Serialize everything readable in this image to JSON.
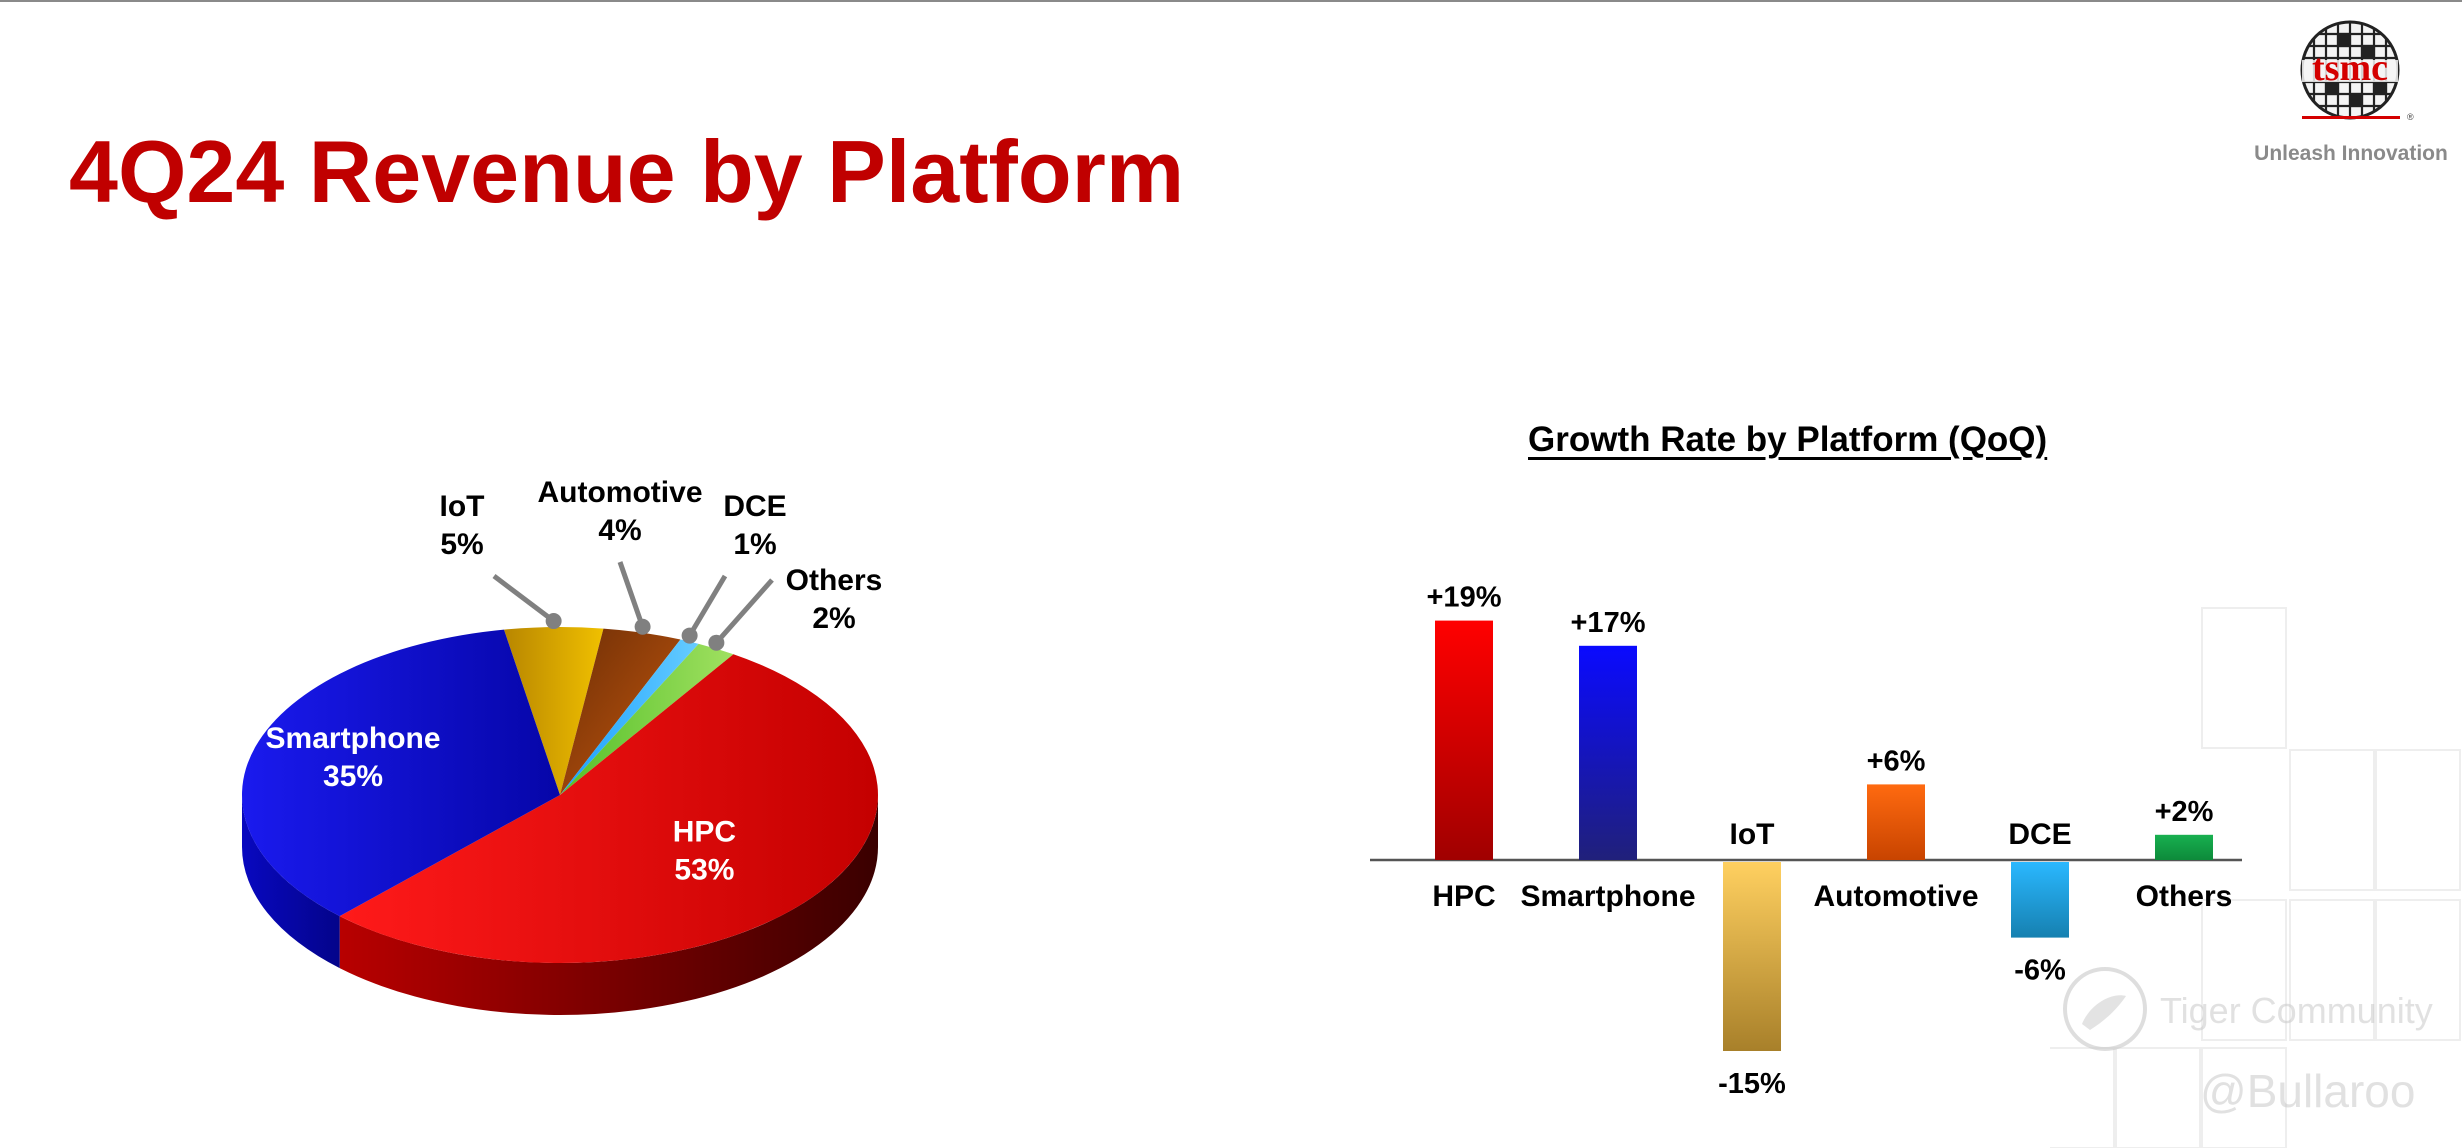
{
  "slide": {
    "title": "4Q24 Revenue by Platform"
  },
  "logo": {
    "wordmark": "tsmc",
    "tagline": "Unleash Innovation"
  },
  "watermark": {
    "community": "Tiger Community",
    "handle": "@Bullaroo"
  },
  "colors": {
    "title_red": "#c00000",
    "hpc": "#e00000",
    "smartphone": "#0a0ad8",
    "iot": "#c99a00",
    "automotive": "#b0440a",
    "dce": "#22aaff",
    "others": "#66cc33",
    "bar_hpc": "#e00000",
    "bar_smartphone": "#1a1acc",
    "bar_iot": "#e6b94a",
    "bar_automotive": "#ee5a0a",
    "bar_dce": "#1aa3e0",
    "bar_others": "#13a84a"
  },
  "chart_data": [
    {
      "type": "pie",
      "title": "",
      "slices": [
        {
          "label": "HPC",
          "value": 53,
          "text": "53%"
        },
        {
          "label": "Smartphone",
          "value": 35,
          "text": "35%"
        },
        {
          "label": "IoT",
          "value": 5,
          "text": "5%"
        },
        {
          "label": "Automotive",
          "value": 4,
          "text": "4%"
        },
        {
          "label": "DCE",
          "value": 1,
          "text": "1%"
        },
        {
          "label": "Others",
          "value": 2,
          "text": "2%"
        }
      ],
      "style": "3d-tilted"
    },
    {
      "type": "bar",
      "title": "Growth Rate by Platform (QoQ)",
      "categories": [
        "HPC",
        "Smartphone",
        "IoT",
        "Automotive",
        "DCE",
        "Others"
      ],
      "values": [
        19,
        17,
        -15,
        6,
        -6,
        2
      ],
      "value_labels": [
        "+19%",
        "+17%",
        "-15%",
        "+6%",
        "-6%",
        "+2%"
      ],
      "ylim": [
        -15,
        19
      ],
      "grid": false,
      "xlabel": "",
      "ylabel": ""
    }
  ]
}
